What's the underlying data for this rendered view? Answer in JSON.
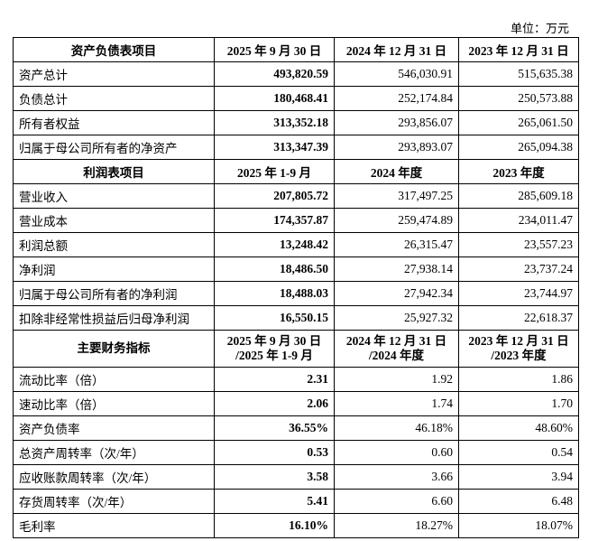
{
  "unit": "单位：万元",
  "sections": [
    {
      "header": [
        "资产负债表项目",
        "2025 年 9 月 30 日",
        "2024 年 12 月 31 日",
        "2023 年 12 月 31 日"
      ],
      "rows": [
        [
          "资产总计",
          "493,820.59",
          "546,030.91",
          "515,635.38"
        ],
        [
          "负债总计",
          "180,468.41",
          "252,174.84",
          "250,573.88"
        ],
        [
          "所有者权益",
          "313,352.18",
          "293,856.07",
          "265,061.50"
        ],
        [
          "归属于母公司所有者的净资产",
          "313,347.39",
          "293,893.07",
          "265,094.38"
        ]
      ]
    },
    {
      "header": [
        "利润表项目",
        "2025 年 1-9 月",
        "2024 年度",
        "2023 年度"
      ],
      "rows": [
        [
          "营业收入",
          "207,805.72",
          "317,497.25",
          "285,609.18"
        ],
        [
          "营业成本",
          "174,357.87",
          "259,474.89",
          "234,011.47"
        ],
        [
          "利润总额",
          "13,248.42",
          "26,315.47",
          "23,557.23"
        ],
        [
          "净利润",
          "18,486.50",
          "27,938.14",
          "23,737.24"
        ],
        [
          "归属于母公司所有者的净利润",
          "18,488.03",
          "27,942.34",
          "23,744.97"
        ],
        [
          "扣除非经常性损益后归母净利润",
          "16,550.15",
          "25,927.32",
          "22,618.37"
        ]
      ]
    },
    {
      "header": [
        "主要财务指标",
        "2025 年 9 月 30 日 /2025 年 1-9 月",
        "2024 年 12 月 31 日 /2024 年度",
        "2023 年 12 月 31 日 /2023 年度"
      ],
      "rows": [
        [
          "流动比率（倍）",
          "2.31",
          "1.92",
          "1.86"
        ],
        [
          "速动比率（倍）",
          "2.06",
          "1.74",
          "1.70"
        ],
        [
          "资产负债率",
          "36.55%",
          "46.18%",
          "48.60%"
        ],
        [
          "总资产周转率（次/年）",
          "0.53",
          "0.60",
          "0.54"
        ],
        [
          "应收账款周转率（次/年）",
          "3.58",
          "3.66",
          "3.94"
        ],
        [
          "存货周转率（次/年）",
          "5.41",
          "6.60",
          "6.48"
        ],
        [
          "毛利率",
          "16.10%",
          "18.27%",
          "18.07%"
        ]
      ]
    }
  ]
}
